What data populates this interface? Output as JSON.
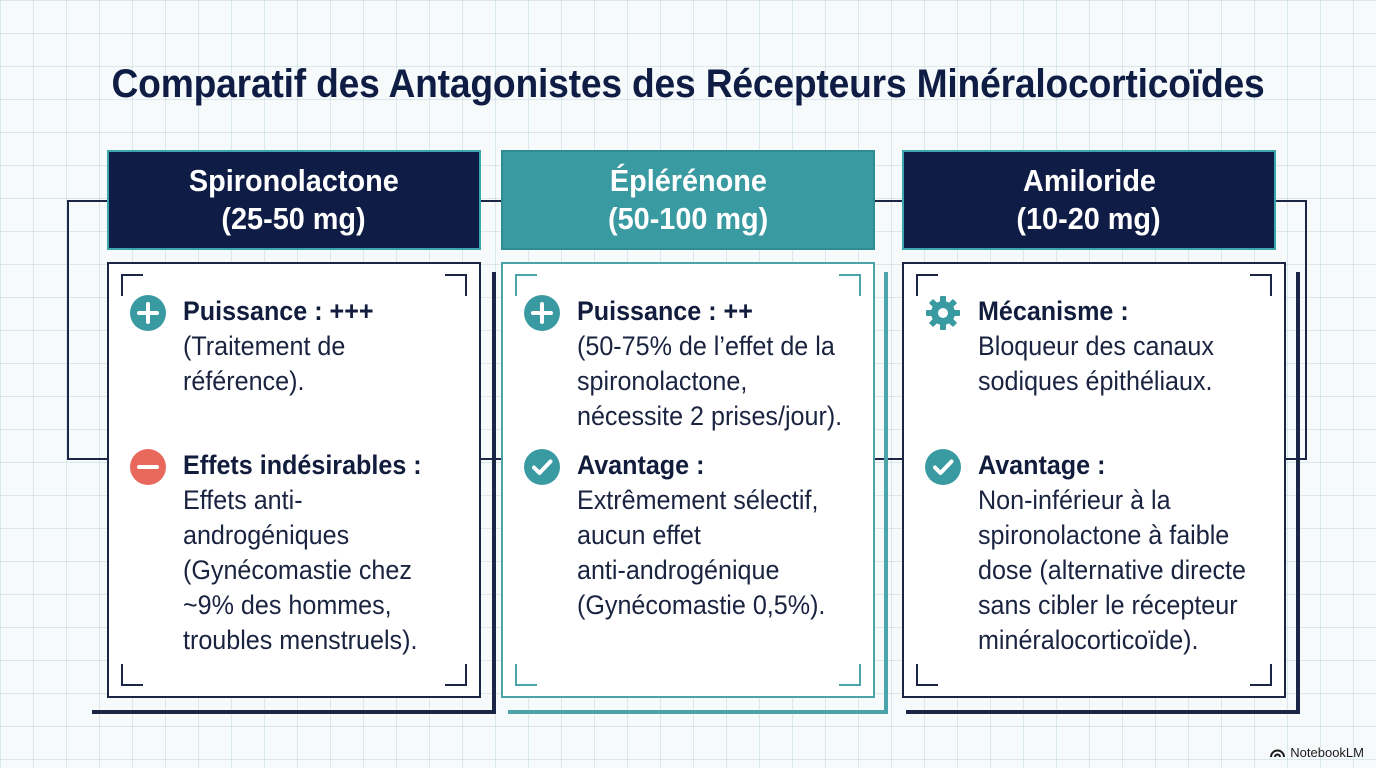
{
  "title": "Comparatif des Antagonistes des Récepteurs Minéralocorticoïdes",
  "columns": [
    {
      "name": "Spironolactone",
      "dose": "(25-50 mg)",
      "items": [
        {
          "icon": "plus-circle-icon",
          "label": "Puissance : +++",
          "lines": [
            "(Traitement de",
            "référence)."
          ]
        },
        {
          "icon": "minus-circle-icon",
          "label": "Effets indésirables :",
          "lines": [
            "Effets anti-",
            "androgéniques",
            "(Gynécomastie chez",
            "~9% des hommes,",
            "troubles menstruels)."
          ]
        }
      ]
    },
    {
      "name": "Éplérénone",
      "dose": "(50-100 mg)",
      "items": [
        {
          "icon": "plus-circle-icon",
          "label": "Puissance : ++",
          "lines": [
            "(50-75% de l’effet de la",
            "spironolactone,",
            "nécessite 2 prises/jour)."
          ]
        },
        {
          "icon": "check-circle-icon",
          "label": "Avantage :",
          "lines": [
            "Extrêmement sélectif,",
            "aucun effet",
            "anti-androgénique",
            "(Gynécomastie 0,5%)."
          ]
        }
      ]
    },
    {
      "name": "Amiloride",
      "dose": "(10-20 mg)",
      "items": [
        {
          "icon": "gear-icon",
          "label": "Mécanisme :",
          "lines": [
            "Bloqueur des canaux",
            "sodiques épithéliaux."
          ]
        },
        {
          "icon": "check-circle-icon",
          "label": "Avantage :",
          "lines": [
            "Non-inférieur à la",
            "spironolactone à faible",
            "dose (alternative directe",
            "sans cibler le récepteur",
            "minéralocorticoïde)."
          ]
        }
      ]
    }
  ],
  "colors": {
    "navy": "#0f1c45",
    "teal": "#3a9aa1",
    "minus": "#e8685c"
  },
  "brand": "NotebookLM"
}
